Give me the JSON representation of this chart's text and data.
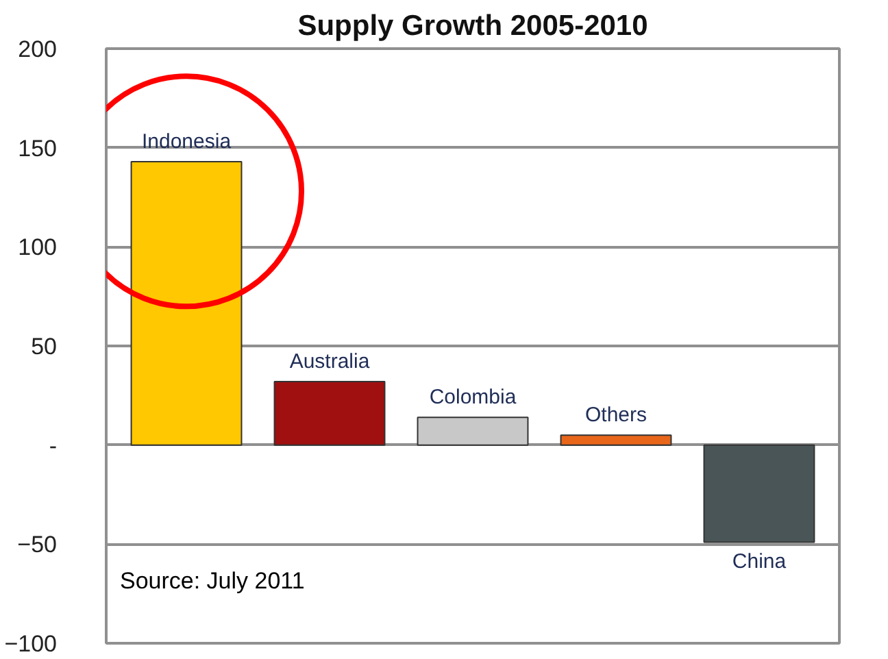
{
  "chart_data": {
    "type": "bar",
    "title": "Supply Growth 2005-2010",
    "categories": [
      "Indonesia",
      "Australia",
      "Colombia",
      "Others",
      "China"
    ],
    "values": [
      143,
      32,
      14,
      5,
      -49
    ],
    "colors": [
      "#ffc800",
      "#a01010",
      "#c8c8c8",
      "#e8661a",
      "#4a5557"
    ],
    "ylim": [
      -100,
      200
    ],
    "yticks": [
      -100,
      -50,
      {
        "value": 0,
        "label": "-"
      },
      50,
      100,
      150,
      200
    ],
    "grid": "y",
    "tick_labels": "y",
    "annotations": [
      "Source: July 2011"
    ]
  }
}
